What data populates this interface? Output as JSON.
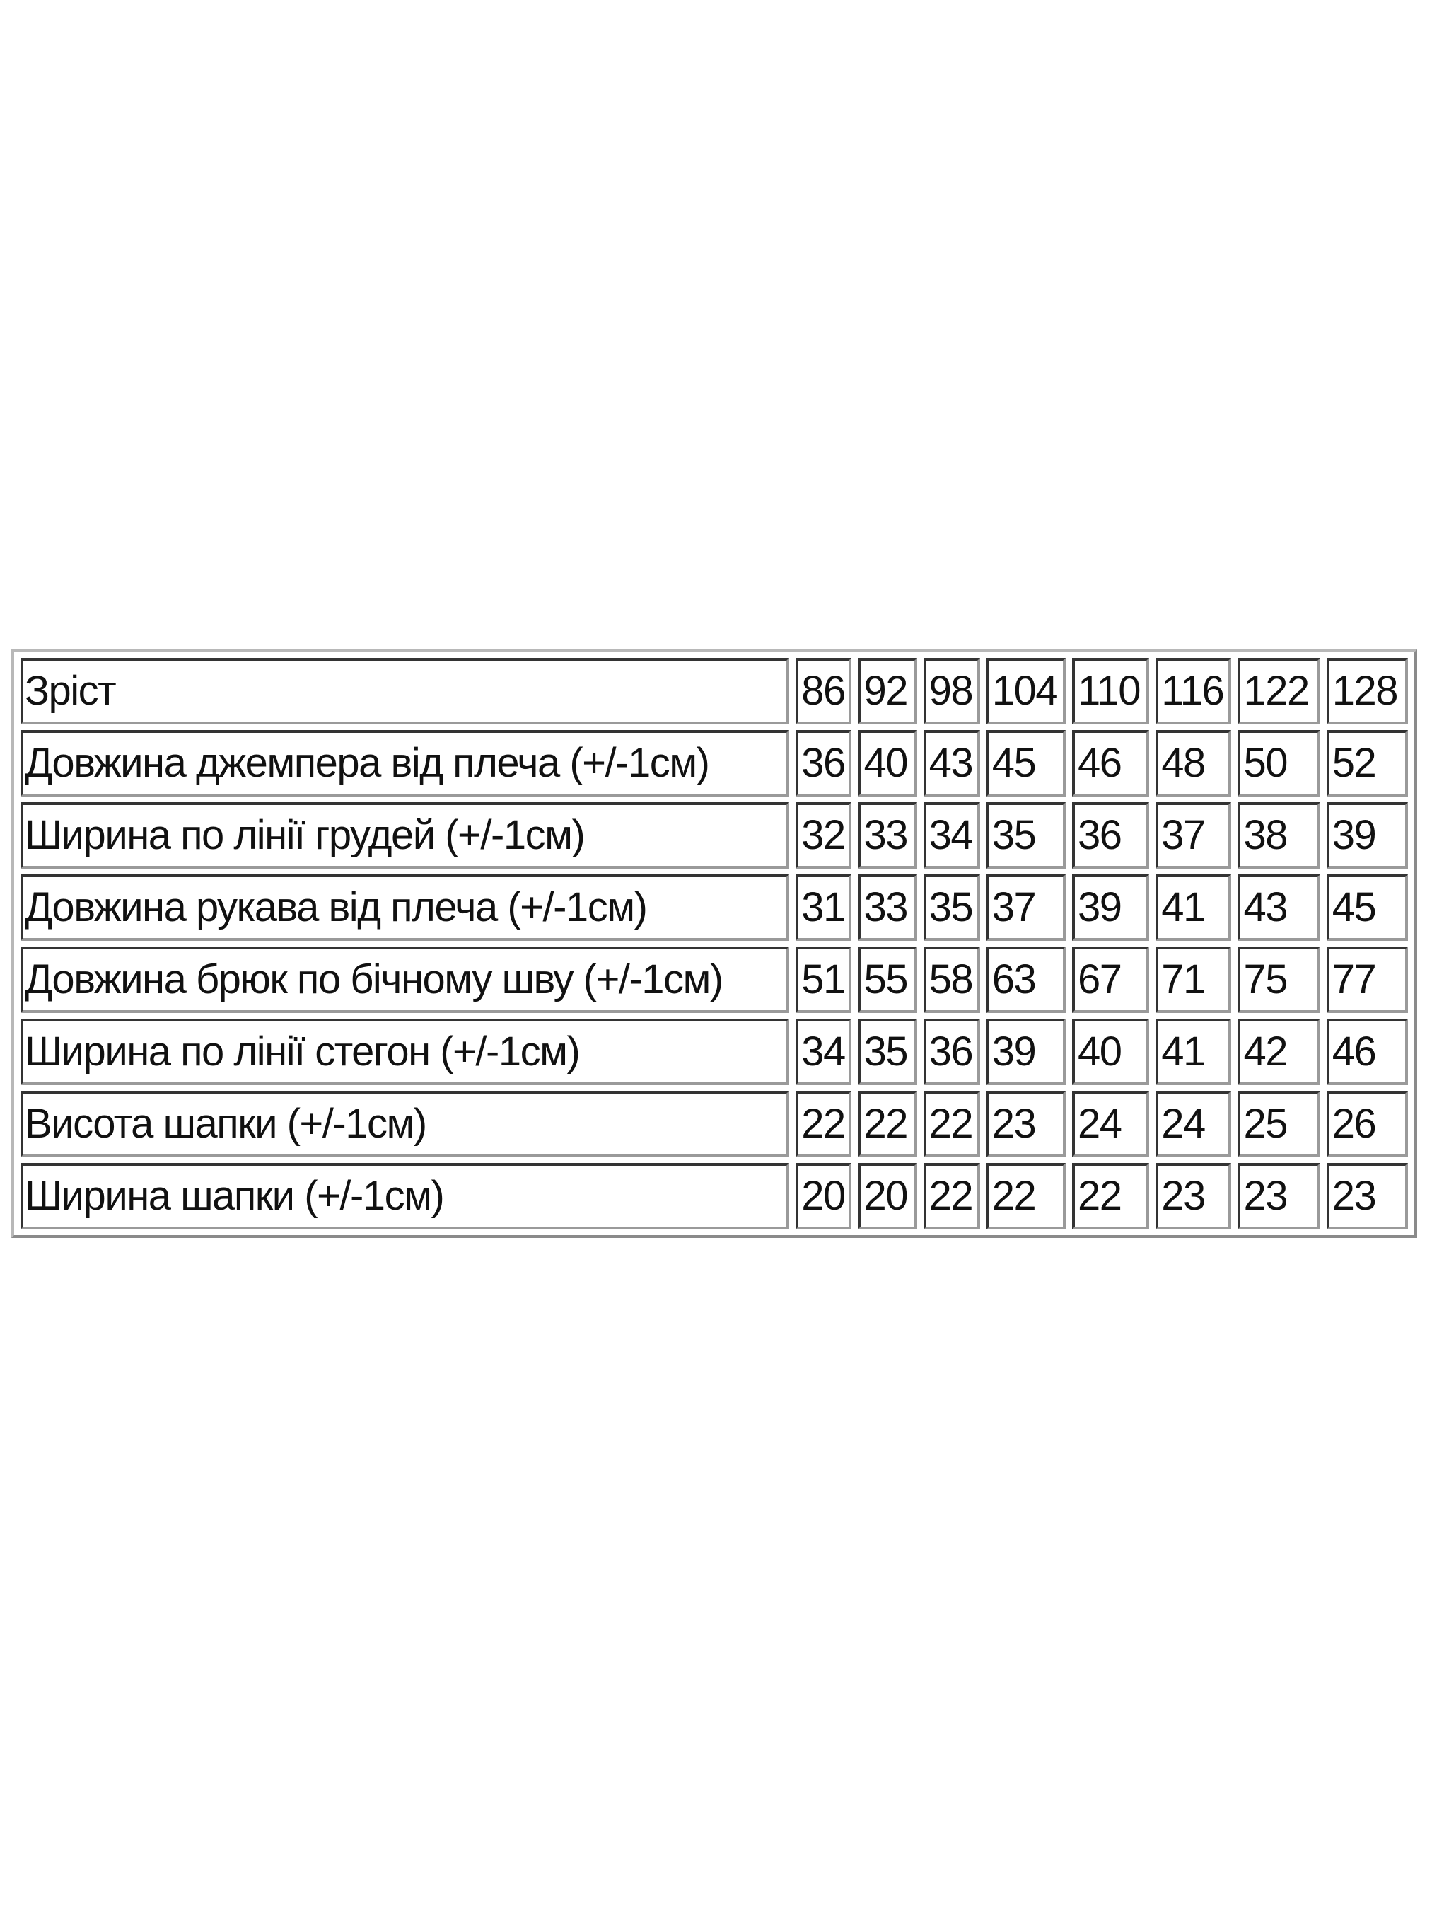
{
  "table": {
    "header": {
      "label": "Зріст",
      "sizes": [
        "86",
        "92",
        "98",
        "104",
        "110",
        "116",
        "122",
        "128"
      ]
    },
    "rows": [
      {
        "label": "Довжина джемпера від плеча (+/-1см)",
        "values": [
          "36",
          "40",
          "43",
          "45",
          "46",
          "48",
          "50",
          "52"
        ]
      },
      {
        "label": "Ширина по лінії грудей (+/-1см)",
        "values": [
          "32",
          "33",
          "34",
          "35",
          "36",
          "37",
          "38",
          "39"
        ]
      },
      {
        "label": "Довжина рукава від плеча (+/-1см)",
        "values": [
          "31",
          "33",
          "35",
          "37",
          "39",
          "41",
          "43",
          "45"
        ]
      },
      {
        "label": "Довжина брюк по бічному шву (+/-1см)",
        "values": [
          "51",
          "55",
          "58",
          "63",
          "67",
          "71",
          "75",
          "77"
        ]
      },
      {
        "label": "Ширина по лінії стегон (+/-1см)",
        "values": [
          "34",
          "35",
          "36",
          "39",
          "40",
          "41",
          "42",
          "46"
        ]
      },
      {
        "label": "Висота шапки (+/-1см)",
        "values": [
          "22",
          "22",
          "22",
          "23",
          "24",
          "24",
          "25",
          "26"
        ]
      },
      {
        "label": "Ширина шапки (+/-1см)",
        "values": [
          "20",
          "20",
          "22",
          "22",
          "22",
          "23",
          "23",
          "23"
        ]
      }
    ]
  }
}
